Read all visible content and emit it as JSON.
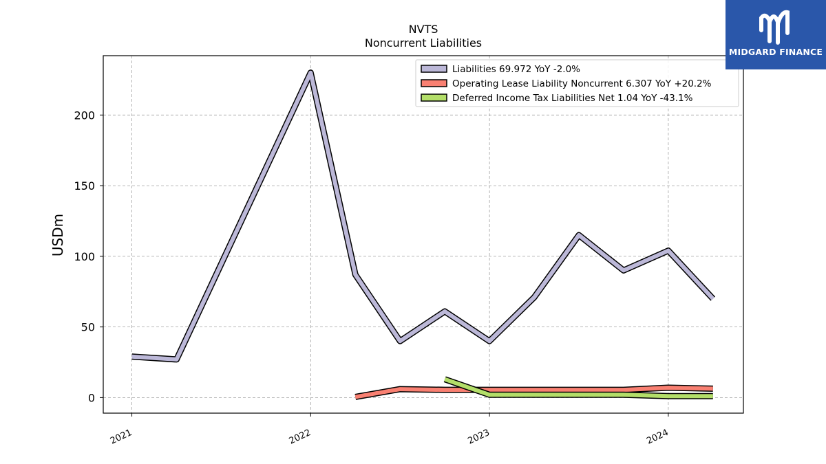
{
  "chart_data": {
    "type": "line",
    "title": "NVTS",
    "subtitle": "Noncurrent  Liabilities",
    "ylabel": "USDm",
    "xlabel": "",
    "ylim": [
      -11,
      242
    ],
    "yticks": [
      0,
      50,
      100,
      150,
      200
    ],
    "xticks": [
      "2021",
      "2022",
      "2023",
      "2024"
    ],
    "grid": true,
    "legend_position": "top-right",
    "series": [
      {
        "name": "Liabilities  69.972 YoY -2.0%",
        "color": "#bcb8d8",
        "points": [
          [
            "2021-01-01",
            29
          ],
          [
            "2021-04-01",
            27
          ],
          [
            "2022-01-01",
            230
          ],
          [
            "2022-04-01",
            87
          ],
          [
            "2022-07-01",
            40
          ],
          [
            "2022-10-01",
            61
          ],
          [
            "2023-01-01",
            40
          ],
          [
            "2023-04-01",
            71
          ],
          [
            "2023-07-01",
            115
          ],
          [
            "2023-10-01",
            90
          ],
          [
            "2024-01-01",
            104
          ],
          [
            "2024-04-01",
            69.972
          ]
        ]
      },
      {
        "name": "Operating Lease Liability Noncurrent  6.307 YoY +20.2%",
        "color": "#f98072",
        "points": [
          [
            "2022-04-01",
            0.5
          ],
          [
            "2022-07-01",
            6
          ],
          [
            "2022-10-01",
            5.5
          ],
          [
            "2023-01-01",
            5.5
          ],
          [
            "2023-04-01",
            5.5
          ],
          [
            "2023-07-01",
            5.5
          ],
          [
            "2023-10-01",
            5.5
          ],
          [
            "2024-01-01",
            7
          ],
          [
            "2024-04-01",
            6.307
          ]
        ]
      },
      {
        "name": "Deferred Income Tax Liabilities Net  1.04 YoY -43.1%",
        "color": "#b3de69",
        "points": [
          [
            "2022-10-01",
            13
          ],
          [
            "2023-01-01",
            2
          ],
          [
            "2023-04-01",
            2
          ],
          [
            "2023-07-01",
            2
          ],
          [
            "2023-10-01",
            2
          ],
          [
            "2024-01-01",
            1
          ],
          [
            "2024-04-01",
            1.04
          ]
        ]
      }
    ]
  },
  "logo": {
    "text": "MIDGARD FINANCE",
    "color": "#2a57aa",
    "icon": "midgard-finance-logo-icon"
  }
}
